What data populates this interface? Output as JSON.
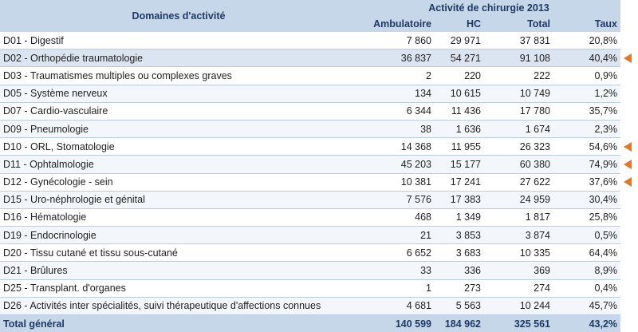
{
  "header": {
    "domain_col": "Domaines d'activité",
    "group_title": "Activité de chirurgie 2013",
    "col_amb": "Ambulatoire",
    "col_hc": "HC",
    "col_total": "Total",
    "col_taux": "Taux"
  },
  "rows": [
    {
      "label": "D01 - Digestif",
      "amb": "7 860",
      "hc": "29 971",
      "total": "37 831",
      "taux": "20,8%",
      "marked": false
    },
    {
      "label": "D02 - Orthopédie traumatologie",
      "amb": "36 837",
      "hc": "54 271",
      "total": "91 108",
      "taux": "40,4%",
      "marked": true
    },
    {
      "label": "D03 - Traumatismes multiples ou complexes graves",
      "amb": "2",
      "hc": "220",
      "total": "222",
      "taux": "0,9%",
      "marked": false
    },
    {
      "label": "D05 - Système nerveux",
      "amb": "134",
      "hc": "10 615",
      "total": "10 749",
      "taux": "1,2%",
      "marked": false
    },
    {
      "label": "D07 - Cardio-vasculaire",
      "amb": "6 344",
      "hc": "11 436",
      "total": "17 780",
      "taux": "35,7%",
      "marked": false
    },
    {
      "label": "D09 - Pneumologie",
      "amb": "38",
      "hc": "1 636",
      "total": "1 674",
      "taux": "2,3%",
      "marked": false
    },
    {
      "label": "D10 - ORL, Stomatologie",
      "amb": "14 368",
      "hc": "11 955",
      "total": "26 323",
      "taux": "54,6%",
      "marked": true
    },
    {
      "label": "D11 - Ophtalmologie",
      "amb": "45 203",
      "hc": "15 177",
      "total": "60 380",
      "taux": "74,9%",
      "marked": true
    },
    {
      "label": "D12 - Gynécologie - sein",
      "amb": "10 381",
      "hc": "17 241",
      "total": "27 622",
      "taux": "37,6%",
      "marked": true
    },
    {
      "label": "D15 - Uro-néphrologie et génital",
      "amb": "7 576",
      "hc": "17 383",
      "total": "24 959",
      "taux": "30,4%",
      "marked": false
    },
    {
      "label": "D16 - Hématologie",
      "amb": "468",
      "hc": "1 349",
      "total": "1 817",
      "taux": "25,8%",
      "marked": false
    },
    {
      "label": "D19 - Endocrinologie",
      "amb": "21",
      "hc": "3 853",
      "total": "3 874",
      "taux": "0,5%",
      "marked": false
    },
    {
      "label": "D20 - Tissu cutané et tissu sous-cutané",
      "amb": "6 652",
      "hc": "3 683",
      "total": "10 335",
      "taux": "64,4%",
      "marked": false
    },
    {
      "label": "D21 - Brûlures",
      "amb": "33",
      "hc": "336",
      "total": "369",
      "taux": "8,9%",
      "marked": false
    },
    {
      "label": "D25 - Transplant. d'organes",
      "amb": "1",
      "hc": "273",
      "total": "274",
      "taux": "0,4%",
      "marked": false
    },
    {
      "label": "D26 - Activités inter spécialités, suivi thérapeutique d'affections connues",
      "amb": "4 681",
      "hc": "5 563",
      "total": "10 244",
      "taux": "45,7%",
      "marked": false
    }
  ],
  "footer": {
    "label": "Total général",
    "amb": "140 599",
    "hc": "184 962",
    "total": "325 561",
    "taux": "43,2%"
  },
  "colors": {
    "header_bg": "#c6d7ea",
    "header_text": "#1f3864",
    "row_alt": "#f3f6fb",
    "row_highlight": "#dbe5f1",
    "marker": "#e8761f"
  },
  "icons": {
    "marker": "orange-left-triangle-icon"
  }
}
